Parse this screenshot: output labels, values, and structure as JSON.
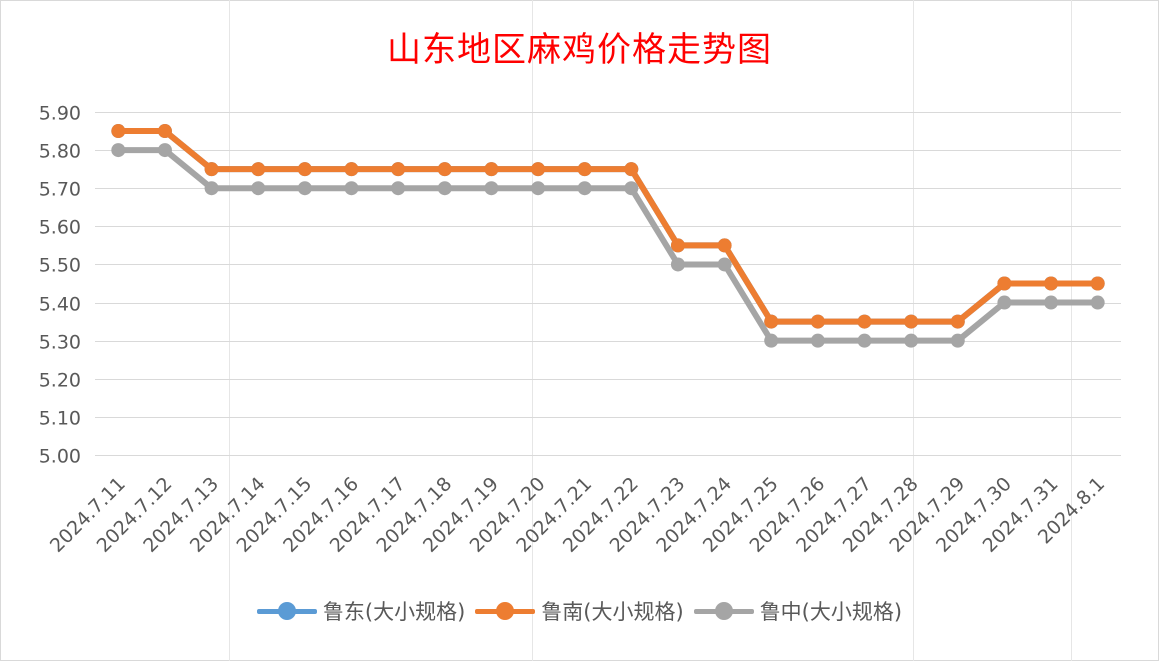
{
  "chart_data": {
    "type": "line",
    "title": "山东地区麻鸡价格走势图",
    "xlabel": "",
    "ylabel": "",
    "ylim": [
      5.0,
      5.9
    ],
    "yticks": [
      "5.00",
      "5.10",
      "5.20",
      "5.30",
      "5.40",
      "5.50",
      "5.60",
      "5.70",
      "5.80",
      "5.90"
    ],
    "grid": true,
    "legend_position": "bottom",
    "categories": [
      "2024.7.11",
      "2024.7.12",
      "2024.7.13",
      "2024.7.14",
      "2024.7.15",
      "2024.7.16",
      "2024.7.17",
      "2024.7.18",
      "2024.7.19",
      "2024.7.20",
      "2024.7.21",
      "2024.7.22",
      "2024.7.23",
      "2024.7.24",
      "2024.7.25",
      "2024.7.26",
      "2024.7.27",
      "2024.7.28",
      "2024.7.29",
      "2024.7.30",
      "2024.7.31",
      "2024.8.1"
    ],
    "series": [
      {
        "name": "鲁东(大小规格)",
        "color": "#5b9bd5",
        "values": [
          5.85,
          5.85,
          5.75,
          5.75,
          5.75,
          5.75,
          5.75,
          5.75,
          5.75,
          5.75,
          5.75,
          5.75,
          5.55,
          5.55,
          5.35,
          5.35,
          5.35,
          5.35,
          5.35,
          5.45,
          5.45,
          5.45
        ]
      },
      {
        "name": "鲁南(大小规格)",
        "color": "#ed7d31",
        "values": [
          5.85,
          5.85,
          5.75,
          5.75,
          5.75,
          5.75,
          5.75,
          5.75,
          5.75,
          5.75,
          5.75,
          5.75,
          5.55,
          5.55,
          5.35,
          5.35,
          5.35,
          5.35,
          5.35,
          5.45,
          5.45,
          5.45
        ]
      },
      {
        "name": "鲁中(大小规格)",
        "color": "#a5a5a5",
        "values": [
          5.8,
          5.8,
          5.7,
          5.7,
          5.7,
          5.7,
          5.7,
          5.7,
          5.7,
          5.7,
          5.7,
          5.7,
          5.5,
          5.5,
          5.3,
          5.3,
          5.3,
          5.3,
          5.3,
          5.4,
          5.4,
          5.4
        ]
      }
    ]
  }
}
